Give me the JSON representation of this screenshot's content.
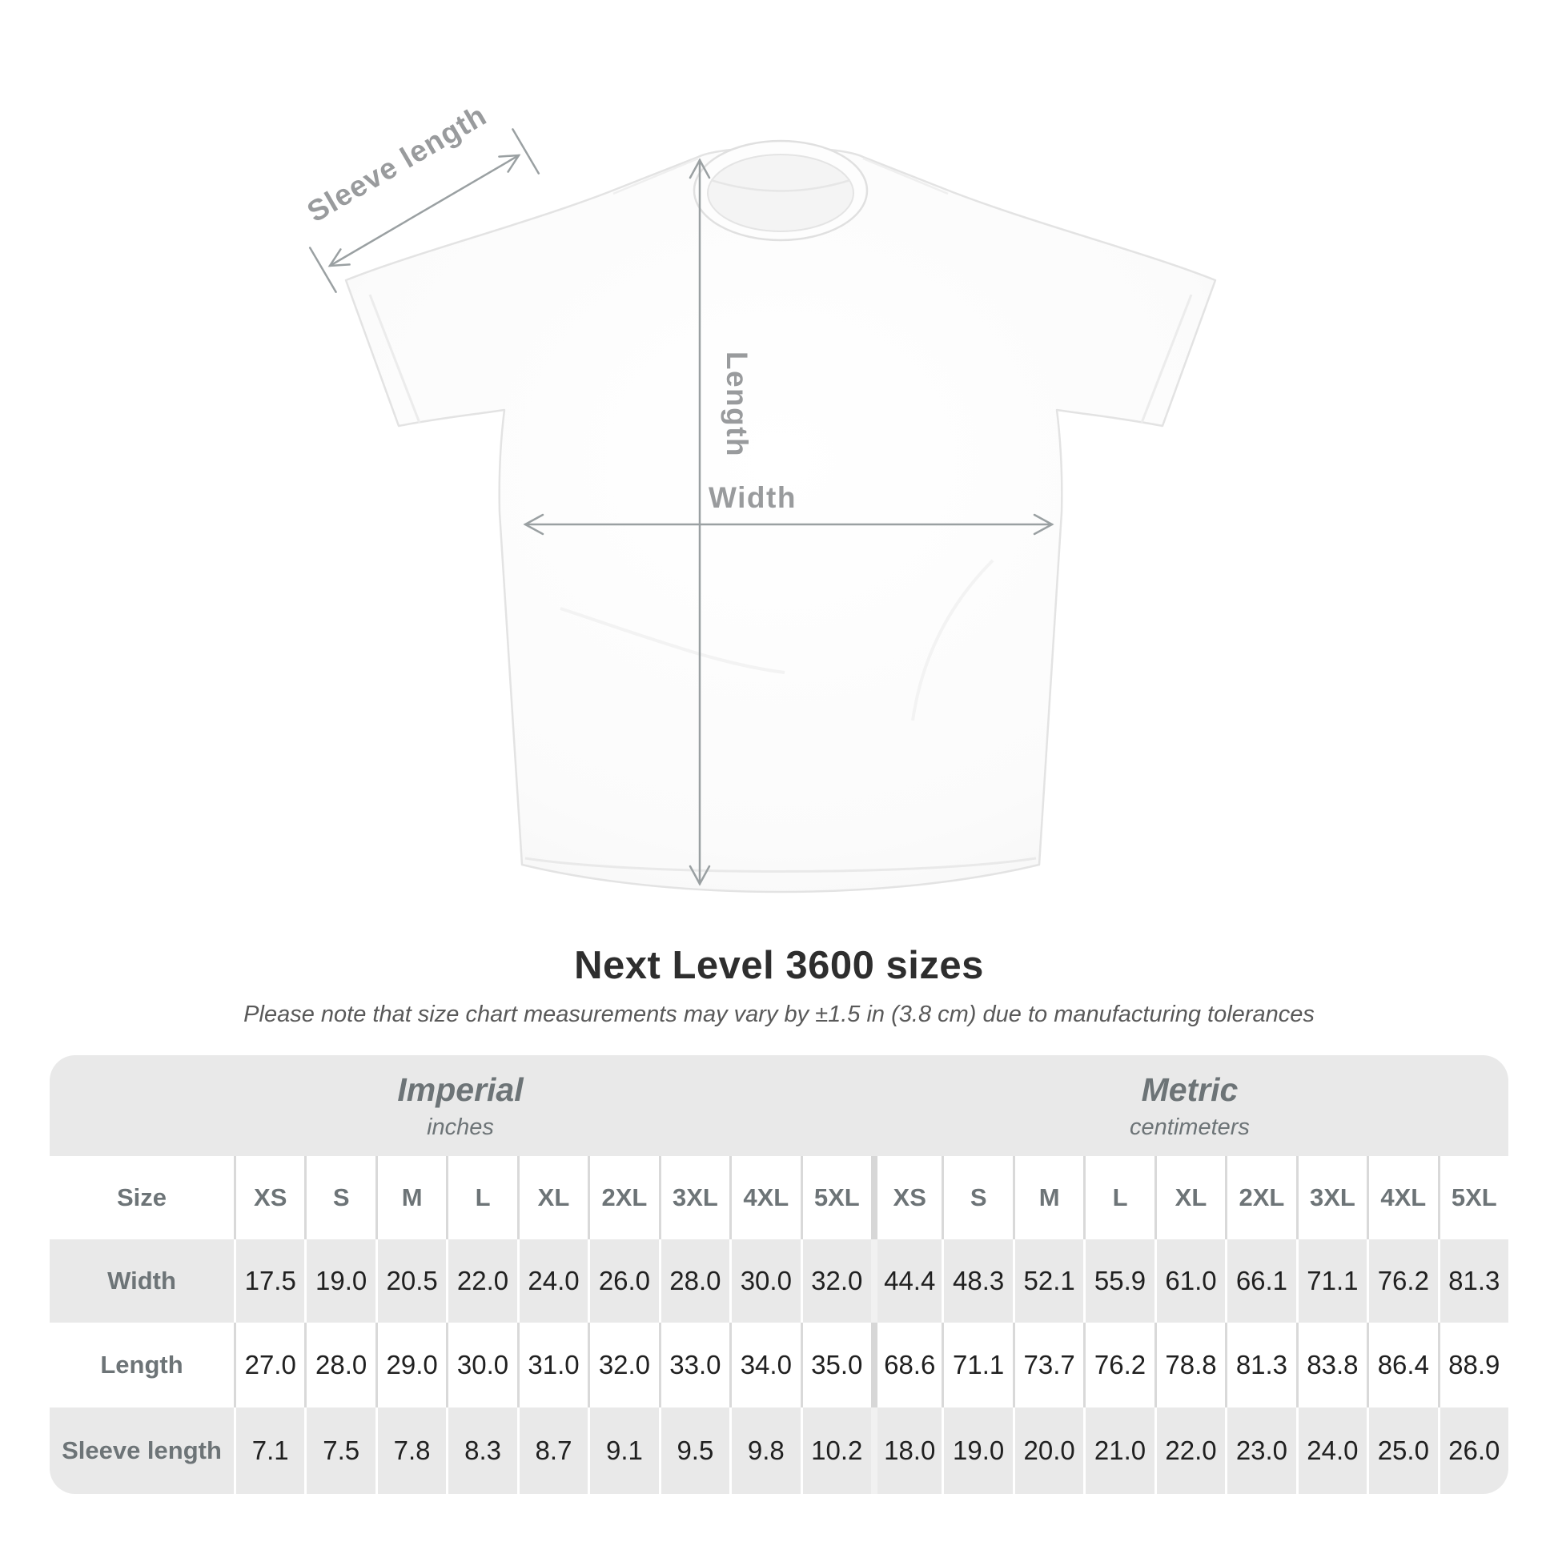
{
  "heading": {
    "title": "Next Level 3600 sizes",
    "note": "Please note that size chart measurements may vary by ±1.5 in (3.8 cm) due to manufacturing tolerances"
  },
  "diagram": {
    "sleeve_label": "Sleeve length",
    "length_label": "Length",
    "width_label": "Width",
    "annotation_color": "#999b9d",
    "shirt_fill": "#fbfbfb",
    "shirt_outline": "#e3e3e3"
  },
  "table": {
    "corner_label": "Size",
    "sections": [
      {
        "name": "Imperial",
        "unit": "inches"
      },
      {
        "name": "Metric",
        "unit": "centimeters"
      }
    ],
    "sizes": [
      "XS",
      "S",
      "M",
      "L",
      "XL",
      "2XL",
      "3XL",
      "4XL",
      "5XL"
    ],
    "rows": [
      {
        "label": "Width",
        "imperial": [
          "17.5",
          "19.0",
          "20.5",
          "22.0",
          "24.0",
          "26.0",
          "28.0",
          "30.0",
          "32.0"
        ],
        "metric": [
          "44.4",
          "48.3",
          "52.1",
          "55.9",
          "61.0",
          "66.1",
          "71.1",
          "76.2",
          "81.3"
        ]
      },
      {
        "label": "Length",
        "imperial": [
          "27.0",
          "28.0",
          "29.0",
          "30.0",
          "31.0",
          "32.0",
          "33.0",
          "34.0",
          "35.0"
        ],
        "metric": [
          "68.6",
          "71.1",
          "73.7",
          "76.2",
          "78.8",
          "81.3",
          "83.8",
          "86.4",
          "88.9"
        ]
      },
      {
        "label": "Sleeve length",
        "imperial": [
          "7.1",
          "7.5",
          "7.8",
          "8.3",
          "8.7",
          "9.1",
          "9.5",
          "9.8",
          "10.2"
        ],
        "metric": [
          "18.0",
          "19.0",
          "20.0",
          "21.0",
          "22.0",
          "23.0",
          "24.0",
          "25.0",
          "26.0"
        ]
      }
    ]
  },
  "chart_data": {
    "type": "table",
    "title": "Next Level 3600 sizes",
    "note": "Please note that size chart measurements may vary by ±1.5 in (3.8 cm) due to manufacturing tolerances",
    "column_groups": [
      {
        "name": "Imperial",
        "unit": "inches",
        "columns": [
          "XS",
          "S",
          "M",
          "L",
          "XL",
          "2XL",
          "3XL",
          "4XL",
          "5XL"
        ]
      },
      {
        "name": "Metric",
        "unit": "centimeters",
        "columns": [
          "XS",
          "S",
          "M",
          "L",
          "XL",
          "2XL",
          "3XL",
          "4XL",
          "5XL"
        ]
      }
    ],
    "rows": [
      {
        "measurement": "Width",
        "imperial_in": [
          17.5,
          19.0,
          20.5,
          22.0,
          24.0,
          26.0,
          28.0,
          30.0,
          32.0
        ],
        "metric_cm": [
          44.4,
          48.3,
          52.1,
          55.9,
          61.0,
          66.1,
          71.1,
          76.2,
          81.3
        ]
      },
      {
        "measurement": "Length",
        "imperial_in": [
          27.0,
          28.0,
          29.0,
          30.0,
          31.0,
          32.0,
          33.0,
          34.0,
          35.0
        ],
        "metric_cm": [
          68.6,
          71.1,
          73.7,
          76.2,
          78.8,
          81.3,
          83.8,
          86.4,
          88.9
        ]
      },
      {
        "measurement": "Sleeve length",
        "imperial_in": [
          7.1,
          7.5,
          7.8,
          8.3,
          8.7,
          9.1,
          9.5,
          9.8,
          10.2
        ],
        "metric_cm": [
          18.0,
          19.0,
          20.0,
          21.0,
          22.0,
          23.0,
          24.0,
          25.0,
          26.0
        ]
      }
    ]
  }
}
